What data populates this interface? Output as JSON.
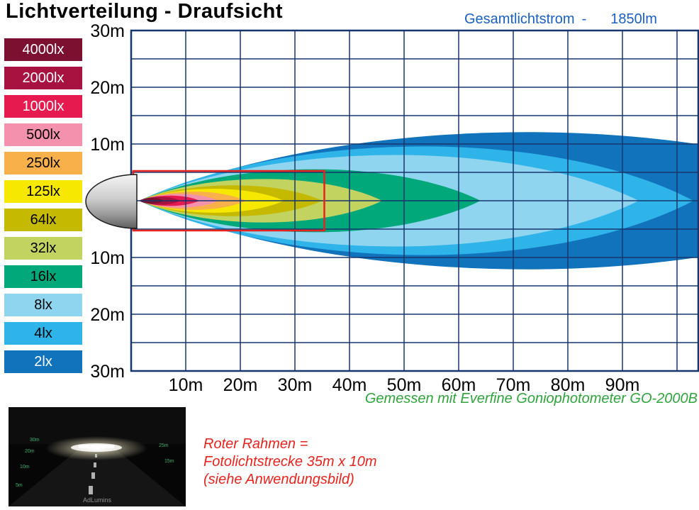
{
  "page": {
    "title": "Lichtverteilung - Draufsicht",
    "flux_label": "Gesamtlichtstrom",
    "flux_dash": "-",
    "flux_value": "1850lm",
    "measured_note": "Gemessen mit Everfine Goniophotometer GO-2000B",
    "red_note_lines": [
      "Roter Rahmen =",
      "Fotolichtstrecke 35m x 10m",
      "(siehe Anwendungsbild)"
    ]
  },
  "colors": {
    "grid": "#17366e",
    "flux": "#1a60c4",
    "green": "#2fa43c",
    "red": "#e8231d"
  },
  "chart_data": {
    "type": "area",
    "title": "Lichtverteilung - Draufsicht",
    "description": "Top-view iso-lux beam pattern of a lamp; nested illuminance contours starting at the lamp at 0 m",
    "total_flux": "1850lm",
    "x_ticks": [
      "10m",
      "20m",
      "30m",
      "40m",
      "50m",
      "60m",
      "70m",
      "80m",
      "90m"
    ],
    "x_tick_values_m": [
      10,
      20,
      30,
      40,
      50,
      60,
      70,
      80,
      90
    ],
    "y_ticks": [
      "30m",
      "20m",
      "10m",
      "10m",
      "20m",
      "30m"
    ],
    "y_tick_values_m": [
      30,
      20,
      10,
      -10,
      -20,
      -30
    ],
    "x_range_m": [
      0,
      104
    ],
    "y_range_m": [
      -30,
      30
    ],
    "grid": true,
    "legend_position": "left",
    "contours": [
      {
        "label": "4000lx",
        "color": "#7c1031",
        "text_color": "#ffffff",
        "reach_m": 6,
        "half_width_m": 0.5,
        "clipped": false
      },
      {
        "label": "2000lx",
        "color": "#a81240",
        "text_color": "#ffffff",
        "reach_m": 9,
        "half_width_m": 0.7,
        "clipped": false
      },
      {
        "label": "1000lx",
        "color": "#e61a4e",
        "text_color": "#ffffff",
        "reach_m": 12.5,
        "half_width_m": 0.9,
        "clipped": false
      },
      {
        "label": "500lx",
        "color": "#f491ad",
        "text_color": "#000000",
        "reach_m": 16,
        "half_width_m": 1.2,
        "clipped": false
      },
      {
        "label": "250lx",
        "color": "#f8b04a",
        "text_color": "#000000",
        "reach_m": 21,
        "half_width_m": 1.6,
        "clipped": false
      },
      {
        "label": "125lx",
        "color": "#f6e800",
        "text_color": "#000000",
        "reach_m": 28,
        "half_width_m": 2.1,
        "clipped": false
      },
      {
        "label": "64lx",
        "color": "#c6ba00",
        "text_color": "#000000",
        "reach_m": 35,
        "half_width_m": 2.7,
        "clipped": false
      },
      {
        "label": "32lx",
        "color": "#c2d35f",
        "text_color": "#000000",
        "reach_m": 46,
        "half_width_m": 3.8,
        "clipped": false
      },
      {
        "label": "16lx",
        "color": "#00a87a",
        "text_color": "#000000",
        "reach_m": 64,
        "half_width_m": 5.5,
        "clipped": false
      },
      {
        "label": "8lx",
        "color": "#90d5ef",
        "text_color": "#000000",
        "reach_m": 93,
        "half_width_m": 8.0,
        "clipped": false
      },
      {
        "label": "4lx",
        "color": "#2fb4e9",
        "text_color": "#000000",
        "reach_m": 103,
        "half_width_m": 9.5,
        "clipped": false
      },
      {
        "label": "2lx",
        "color": "#1273bd",
        "text_color": "#ffffff",
        "reach_m": 140,
        "half_width_m": 12.0,
        "clipped": true
      }
    ],
    "red_frame": {
      "label": "Fotolichtstrecke",
      "width_m": 35,
      "height_m": 10
    }
  },
  "photo": {
    "alt": "Anwendungsbild - night road illuminated by the lamp",
    "watermark": "AdLumins",
    "distance_markers": [
      "30m",
      "20m",
      "10m",
      "5m",
      "25m",
      "15m"
    ]
  }
}
